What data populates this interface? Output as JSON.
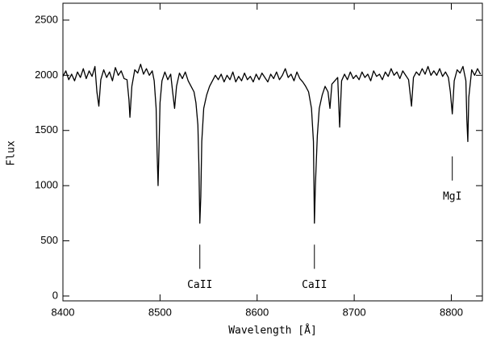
{
  "chart_data": {
    "type": "line",
    "xlabel": "Wavelength [Å]",
    "ylabel": "Flux",
    "xlim": [
      8400,
      8832
    ],
    "ylim": [
      -44,
      2653
    ],
    "xticks": [
      8400,
      8500,
      8600,
      8700,
      8800
    ],
    "yticks": [
      0,
      500,
      1000,
      1500,
      2000,
      2500
    ],
    "color": "#000000",
    "x": [
      8400,
      8403,
      8406,
      8409,
      8412,
      8415,
      8418,
      8421,
      8424,
      8427,
      8430,
      8433,
      8435,
      8437,
      8439,
      8442,
      8445,
      8448,
      8451,
      8454,
      8457,
      8460,
      8463,
      8466,
      8468,
      8469,
      8471,
      8474,
      8477,
      8480,
      8483,
      8486,
      8489,
      8492,
      8494,
      8496,
      8497,
      8498,
      8499,
      8500,
      8502,
      8505,
      8508,
      8511,
      8513,
      8515,
      8517,
      8520,
      8523,
      8526,
      8529,
      8532,
      8535,
      8537,
      8539,
      8540,
      8541,
      8542,
      8543,
      8545,
      8548,
      8551,
      8554,
      8557,
      8560,
      8563,
      8566,
      8569,
      8572,
      8575,
      8578,
      8581,
      8584,
      8587,
      8590,
      8593,
      8596,
      8599,
      8602,
      8605,
      8608,
      8611,
      8614,
      8617,
      8620,
      8623,
      8626,
      8629,
      8632,
      8635,
      8638,
      8641,
      8644,
      8647,
      8650,
      8653,
      8656,
      8658,
      8659,
      8660,
      8662,
      8664,
      8667,
      8670,
      8673,
      8675,
      8677,
      8680,
      8683,
      8685,
      8687,
      8690,
      8693,
      8696,
      8699,
      8702,
      8705,
      8708,
      8711,
      8714,
      8717,
      8720,
      8723,
      8726,
      8729,
      8732,
      8735,
      8738,
      8741,
      8744,
      8747,
      8750,
      8753,
      8756,
      8759,
      8761,
      8764,
      8767,
      8770,
      8773,
      8776,
      8779,
      8782,
      8785,
      8788,
      8791,
      8794,
      8797,
      8799,
      8801,
      8803,
      8806,
      8809,
      8812,
      8815,
      8816,
      8817,
      8818,
      8821,
      8824,
      8827,
      8830
    ],
    "y": [
      1990,
      2040,
      1960,
      2010,
      1950,
      2030,
      1980,
      2060,
      1970,
      2040,
      1990,
      2080,
      1850,
      1720,
      1960,
      2050,
      1980,
      2030,
      1950,
      2070,
      2000,
      2040,
      1970,
      1960,
      1780,
      1620,
      1900,
      2050,
      2020,
      2100,
      2010,
      2060,
      2000,
      2040,
      1950,
      1700,
      1300,
      1000,
      1350,
      1750,
      1950,
      2030,
      1960,
      2010,
      1850,
      1700,
      1900,
      2020,
      1970,
      2030,
      1950,
      1900,
      1850,
      1750,
      1550,
      1200,
      660,
      900,
      1400,
      1700,
      1820,
      1900,
      1950,
      2000,
      1960,
      2010,
      1940,
      2000,
      1960,
      2030,
      1940,
      1990,
      1950,
      2020,
      1960,
      1990,
      1940,
      2010,
      1960,
      2020,
      1980,
      1940,
      2010,
      1970,
      2030,
      1960,
      2000,
      2060,
      1980,
      2010,
      1950,
      2030,
      1970,
      1940,
      1900,
      1850,
      1700,
      1400,
      660,
      1000,
      1450,
      1700,
      1820,
      1900,
      1850,
      1700,
      1920,
      1950,
      1980,
      1530,
      1950,
      2010,
      1960,
      2030,
      1970,
      2000,
      1960,
      2030,
      1980,
      2010,
      1950,
      2040,
      1990,
      2010,
      1960,
      2030,
      1990,
      2060,
      2000,
      2030,
      1970,
      2040,
      2000,
      1960,
      1720,
      1980,
      2030,
      2000,
      2060,
      2010,
      2080,
      2000,
      2040,
      2000,
      2060,
      1990,
      2030,
      1980,
      1850,
      1650,
      1950,
      2050,
      2020,
      2080,
      1950,
      1600,
      1400,
      1800,
      2050,
      2000,
      2060,
      2010
    ],
    "annotations": [
      {
        "text": "CaII",
        "x": 8541,
        "y": 100
      },
      {
        "text": "CaII",
        "x": 8659,
        "y": 100
      },
      {
        "text": "MgI",
        "x": 8801,
        "y": 900
      }
    ]
  }
}
